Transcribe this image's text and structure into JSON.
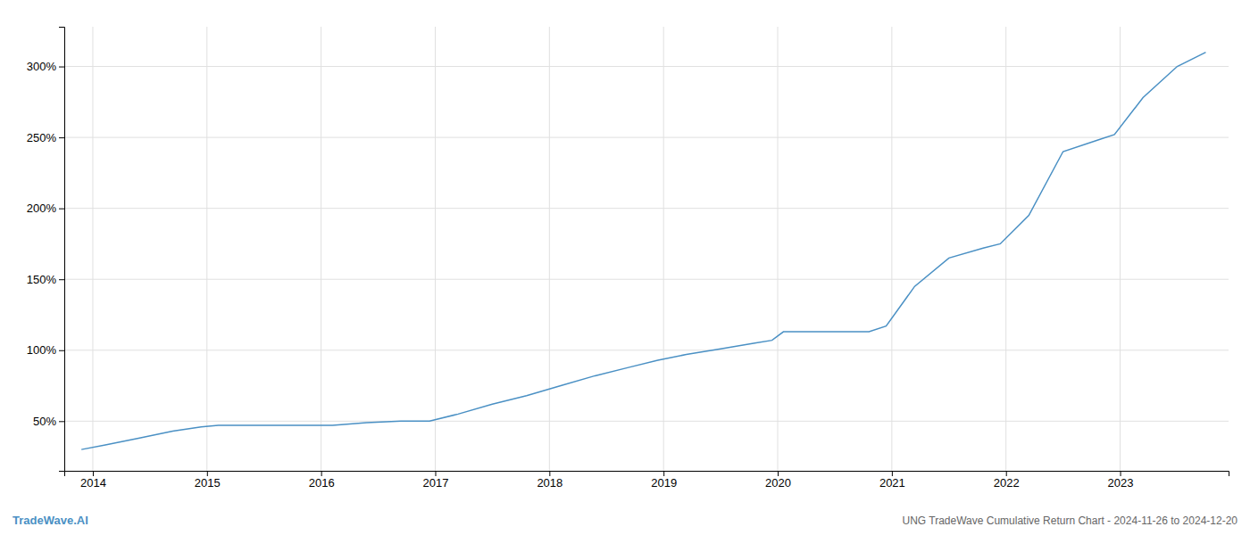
{
  "chart_data": {
    "type": "line",
    "title": "UNG TradeWave Cumulative Return Chart - 2024-11-26 to 2024-12-20",
    "annotations": [
      "TradeWave.AI"
    ],
    "x": [
      2013.9,
      2014.1,
      2014.4,
      2014.7,
      2014.95,
      2015.1,
      2015.4,
      2015.7,
      2015.95,
      2016.0,
      2016.1,
      2016.4,
      2016.7,
      2016.95,
      2017.2,
      2017.5,
      2017.8,
      2018.1,
      2018.4,
      2018.7,
      2018.95,
      2019.2,
      2019.5,
      2019.8,
      2019.95,
      2020.05,
      2020.2,
      2020.5,
      2020.8,
      2020.95,
      2021.2,
      2021.5,
      2021.8,
      2021.95,
      2022.2,
      2022.5,
      2022.8,
      2022.95,
      2023.2,
      2023.5,
      2023.75
    ],
    "values": [
      30,
      33,
      38,
      43,
      46,
      47,
      47,
      47,
      47,
      47,
      47,
      49,
      50,
      50,
      55,
      62,
      68,
      75,
      82,
      88,
      93,
      97,
      101,
      105,
      107,
      113,
      113,
      113,
      113,
      117,
      145,
      165,
      172,
      175,
      195,
      240,
      248,
      252,
      278,
      300,
      310
    ],
    "color": "#4a90c4",
    "xlim": [
      2013.75,
      2023.95
    ],
    "ylim": [
      15,
      328
    ],
    "xticks": [
      2014,
      2015,
      2016,
      2017,
      2018,
      2019,
      2020,
      2021,
      2022,
      2023
    ],
    "yticks": [
      {
        "value": 50,
        "label": "50%"
      },
      {
        "value": 100,
        "label": "100%"
      },
      {
        "value": 150,
        "label": "150%"
      },
      {
        "value": 200,
        "label": "200%"
      },
      {
        "value": 250,
        "label": "250%"
      },
      {
        "value": 300,
        "label": "300%"
      }
    ],
    "grid": true
  }
}
